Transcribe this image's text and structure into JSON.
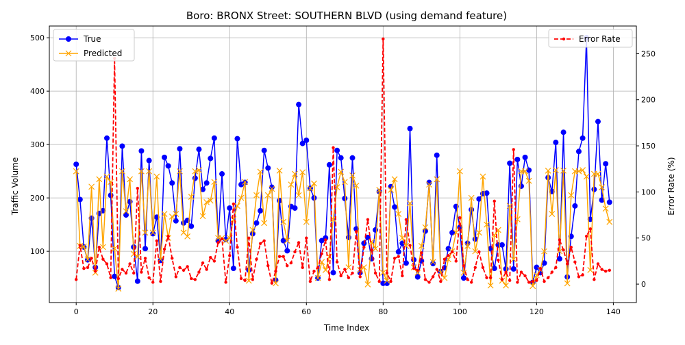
{
  "chart_data": {
    "type": "line",
    "title": "Boro: BRONX Street: SOUTHERN BLVD (using demand feature)",
    "xlabel": "Time Index",
    "ylabel": "Traffic Volume",
    "y2label": "Error Rate (%)",
    "xlim": [
      -7,
      146
    ],
    "ylim": [
      4,
      522
    ],
    "y2lim": [
      -20,
      280
    ],
    "xticks": [
      0,
      20,
      40,
      60,
      80,
      100,
      120,
      140
    ],
    "yticks": [
      100,
      200,
      300,
      400,
      500
    ],
    "y2ticks": [
      0,
      50,
      100,
      150,
      200,
      250
    ],
    "grid": true,
    "legend_left": {
      "position": "upper-left",
      "entries": [
        "True",
        "Predicted"
      ]
    },
    "legend_right": {
      "position": "upper-right",
      "entries": [
        "Error Rate"
      ]
    },
    "colors": {
      "true": "#0000ff",
      "predicted": "#ffa500",
      "error": "#ff0000",
      "grid": "#b0b0b0"
    },
    "series": [
      {
        "name": "True",
        "axis": "left",
        "marker": "circle",
        "style": "solid",
        "values": [
          263,
          197,
          108,
          84,
          162,
          70,
          171,
          176,
          312,
          205,
          53,
          32,
          297,
          168,
          193,
          108,
          44,
          288,
          105,
          270,
          133,
          164,
          83,
          276,
          260,
          228,
          157,
          292,
          153,
          158,
          147,
          237,
          291,
          216,
          228,
          274,
          312,
          120,
          245,
          122,
          181,
          68,
          311,
          225,
          229,
          65,
          133,
          153,
          176,
          289,
          256,
          220,
          46,
          195,
          120,
          101,
          184,
          181,
          375,
          302,
          308,
          218,
          200,
          50,
          120,
          125,
          262,
          60,
          289,
          275,
          199,
          126,
          275,
          142,
          60,
          115,
          126,
          86,
          140,
          212,
          40,
          40,
          221,
          183,
          99,
          115,
          78,
          330,
          84,
          52,
          82,
          138,
          229,
          77,
          280,
          62,
          69,
          105,
          135,
          184,
          145,
          50,
          115,
          178,
          123,
          198,
          208,
          209,
          105,
          68,
          112,
          112,
          67,
          265,
          67,
          272,
          222,
          276,
          252,
          42,
          70,
          60,
          78,
          238,
          212,
          304,
          86,
          323,
          52,
          128,
          185,
          287,
          312,
          500,
          160,
          216,
          343,
          196,
          264,
          192
        ]
      },
      {
        "name": "Predicted",
        "axis": "left",
        "marker": "x",
        "style": "solid",
        "values": [
          250,
          110,
          109,
          85,
          221,
          60,
          235,
          108,
          240,
          230,
          105,
          30,
          250,
          175,
          235,
          95,
          90,
          250,
          135,
          250,
          135,
          240,
          85,
          170,
          125,
          165,
          170,
          250,
          135,
          128,
          202,
          250,
          252,
          166,
          192,
          195,
          230,
          125,
          125,
          120,
          125,
          160,
          185,
          200,
          230,
          45,
          140,
          205,
          249,
          153,
          205,
          217,
          40,
          251,
          155,
          120,
          225,
          245,
          205,
          248,
          155,
          218,
          227,
          50,
          80,
          65,
          90,
          160,
          220,
          249,
          230,
          70,
          242,
          223,
          65,
          70,
          38,
          118,
          105,
          215,
          60,
          45,
          215,
          235,
          170,
          125,
          110,
          190,
          70,
          60,
          110,
          145,
          225,
          80,
          235,
          60,
          50,
          85,
          100,
          135,
          250,
          60,
          110,
          200,
          100,
          135,
          240,
          150,
          36,
          130,
          140,
          45,
          36,
          185,
          85,
          160,
          250,
          250,
          232,
          35,
          55,
          65,
          100,
          251,
          170,
          252,
          100,
          251,
          40,
          205,
          250,
          250,
          252,
          240,
          65,
          245,
          245,
          220,
          180,
          155
        ]
      },
      {
        "name": "Error Rate",
        "axis": "right",
        "marker": "point",
        "style": "dashed",
        "values": [
          5,
          42,
          17,
          18,
          28,
          14,
          40,
          27,
          22,
          7,
          245,
          6,
          16,
          12,
          22,
          12,
          104,
          13,
          28,
          7,
          2,
          47,
          3,
          38,
          52,
          28,
          8,
          18,
          15,
          19,
          6,
          5,
          13,
          23,
          16,
          29,
          25,
          45,
          49,
          2,
          31,
          87,
          40,
          6,
          4,
          50,
          5,
          27,
          44,
          47,
          20,
          1,
          14,
          30,
          30,
          20,
          23,
          35,
          45,
          18,
          50,
          3,
          14,
          18,
          33,
          48,
          5,
          148,
          24,
          9,
          16,
          7,
          12,
          57,
          8,
          40,
          70,
          37,
          12,
          3,
          266,
          12,
          3,
          28,
          30,
          9,
          70,
          42,
          17,
          15,
          34,
          5,
          2,
          8,
          16,
          3,
          27,
          31,
          35,
          25,
          72,
          20,
          5,
          2,
          18,
          35,
          18,
          7,
          7,
          90,
          26,
          5,
          13,
          4,
          146,
          2,
          13,
          9,
          2,
          3,
          4,
          17,
          3,
          7,
          13,
          18,
          48,
          37,
          22,
          40,
          24,
          8,
          10,
          52,
          60,
          5,
          22,
          16,
          14,
          15
        ]
      }
    ]
  }
}
